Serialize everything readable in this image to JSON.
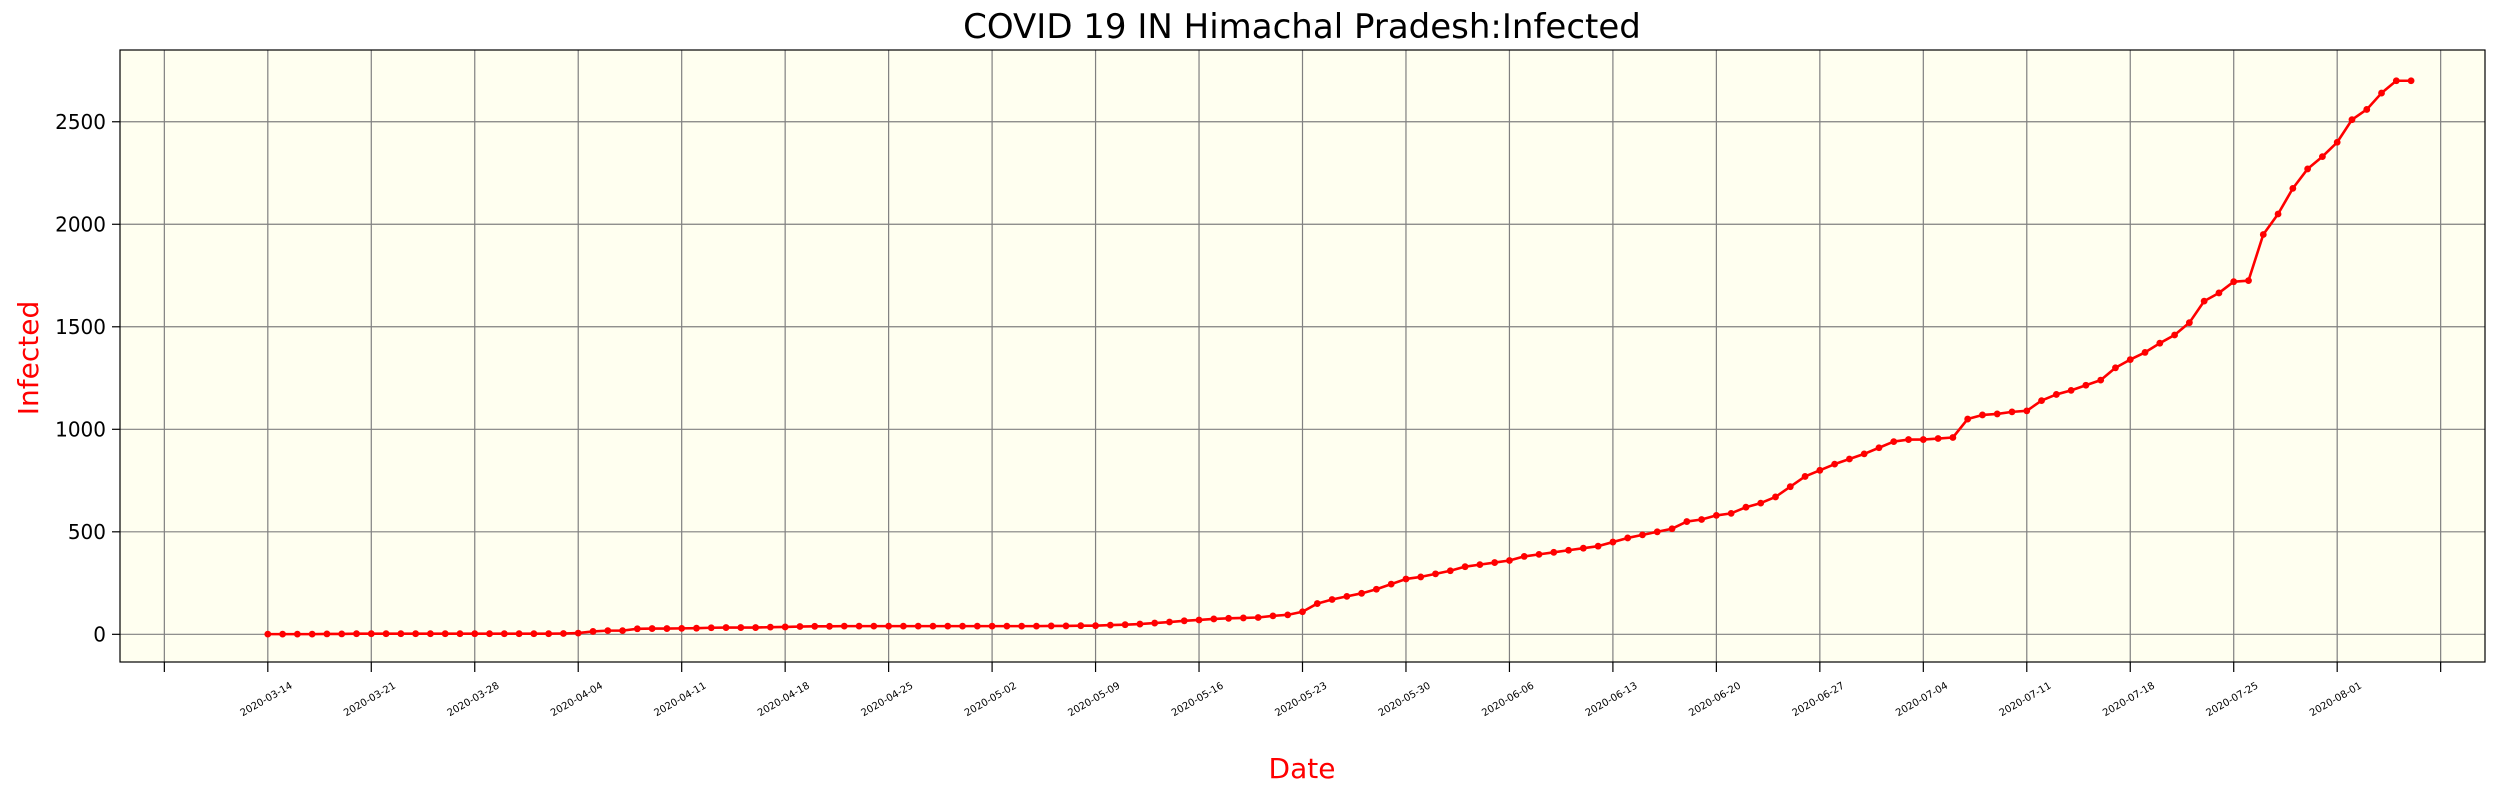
{
  "chart_data": {
    "type": "line",
    "title": "COVID 19 IN Himachal Pradesh:Infected",
    "xlabel": "Date",
    "ylabel": "Infected",
    "x_start": "2020-03-14",
    "x_end": "2020-08-03",
    "xlim": [
      "2020-03-04",
      "2020-08-11"
    ],
    "ylim": [
      -135,
      2850
    ],
    "grid": true,
    "colors": {
      "line": "#ff0000",
      "plot_background": "#fffff0",
      "grid": "#808080",
      "label": "#ff0000",
      "text": "#000000"
    },
    "x_ticks": [
      "",
      "2020-03-14",
      "2020-03-21",
      "2020-03-28",
      "2020-04-04",
      "2020-04-11",
      "2020-04-18",
      "2020-04-25",
      "2020-05-02",
      "2020-05-09",
      "2020-05-16",
      "2020-05-23",
      "2020-05-30",
      "2020-06-06",
      "2020-06-13",
      "2020-06-20",
      "2020-06-27",
      "2020-07-04",
      "2020-07-11",
      "2020-07-18",
      "2020-07-25",
      "2020-08-01",
      ""
    ],
    "y_ticks": [
      0,
      500,
      1000,
      1500,
      2000,
      2500
    ],
    "values": [
      1,
      1,
      1,
      1,
      2,
      2,
      3,
      3,
      3,
      3,
      3,
      3,
      3,
      3,
      3,
      3,
      3,
      3,
      3,
      3,
      4,
      6,
      14,
      18,
      18,
      27,
      28,
      28,
      29,
      30,
      32,
      33,
      33,
      33,
      35,
      36,
      38,
      39,
      39,
      40,
      40,
      40,
      40,
      40,
      40,
      40,
      40,
      40,
      40,
      40,
      40,
      40,
      40,
      41,
      41,
      42,
      42,
      45,
      47,
      50,
      55,
      60,
      66,
      70,
      75,
      78,
      80,
      82,
      90,
      95,
      110,
      150,
      170,
      185,
      200,
      220,
      245,
      270,
      280,
      295,
      310,
      330,
      340,
      350,
      360,
      380,
      390,
      400,
      410,
      420,
      430,
      450,
      470,
      485,
      500,
      515,
      550,
      560,
      580,
      590,
      620,
      640,
      670,
      720,
      770,
      800,
      830,
      855,
      880,
      910,
      940,
      950,
      950,
      955,
      960,
      1050,
      1070,
      1075,
      1085,
      1090,
      1140,
      1170,
      1190,
      1215,
      1240,
      1300,
      1340,
      1375,
      1420,
      1460,
      1520,
      1625,
      1665,
      1720,
      1725,
      1950,
      2050,
      2175,
      2270,
      2330,
      2400,
      2510,
      2560,
      2640,
      2700,
      2700
    ]
  }
}
